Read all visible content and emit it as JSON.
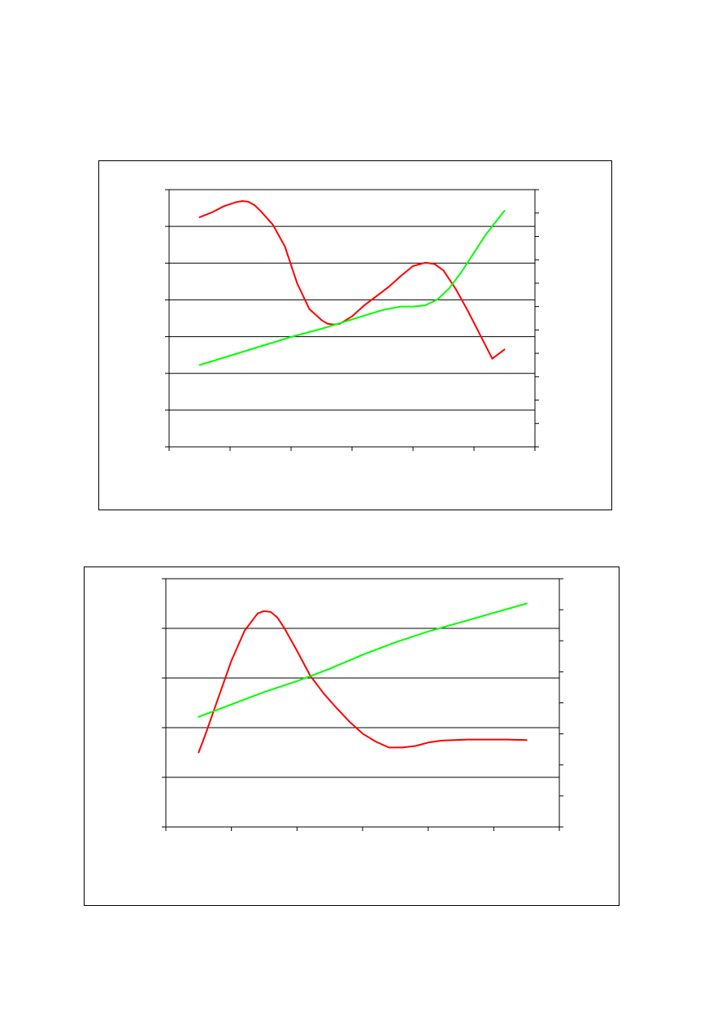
{
  "charts": {
    "colors": {
      "series_a": "#ff0000",
      "series_b": "#00ff00",
      "axis": "#000000",
      "grid": "#000000"
    }
  },
  "chart_data": [
    {
      "type": "line",
      "title": "",
      "xlabel": "",
      "ylabel": "",
      "y2label": "",
      "xlim": [
        0,
        6
      ],
      "ylim": [
        0,
        7
      ],
      "y2lim": [
        0,
        11
      ],
      "x_ticks": 6,
      "y_ticks": 7,
      "y2_ticks": 11,
      "grid": "horizontal",
      "legend": "none",
      "series": [
        {
          "axis": "left",
          "color": "#ff0000",
          "x": [
            0.5,
            0.7,
            0.9,
            1.1,
            1.2,
            1.3,
            1.4,
            1.5,
            1.7,
            1.9,
            2.1,
            2.3,
            2.5,
            2.6,
            2.7,
            2.8,
            3.0,
            3.2,
            3.4,
            3.6,
            3.8,
            4.0,
            4.2,
            4.35,
            4.5,
            4.7,
            4.9,
            5.1,
            5.3,
            5.5
          ],
          "values": [
            6.25,
            6.38,
            6.55,
            6.66,
            6.69,
            6.67,
            6.58,
            6.42,
            6.05,
            5.45,
            4.45,
            3.75,
            3.45,
            3.35,
            3.33,
            3.35,
            3.55,
            3.85,
            4.1,
            4.35,
            4.65,
            4.92,
            5.01,
            4.98,
            4.8,
            4.3,
            3.7,
            3.05,
            2.4,
            2.65
          ]
        },
        {
          "axis": "right",
          "color": "#00ff00",
          "x": [
            0.5,
            1.0,
            1.5,
            2.0,
            2.5,
            3.0,
            3.5,
            3.8,
            4.0,
            4.2,
            4.4,
            4.6,
            4.8,
            5.0,
            5.2,
            5.5
          ],
          "values": [
            3.5,
            3.9,
            4.3,
            4.7,
            5.05,
            5.45,
            5.85,
            6.0,
            6.0,
            6.05,
            6.3,
            6.8,
            7.5,
            8.3,
            9.1,
            10.1
          ]
        }
      ]
    },
    {
      "type": "line",
      "title": "",
      "xlabel": "",
      "ylabel": "",
      "y2label": "",
      "xlim": [
        0,
        6
      ],
      "ylim": [
        0,
        5
      ],
      "y2lim": [
        0,
        8
      ],
      "x_ticks": 6,
      "y_ticks": 5,
      "y2_ticks": 8,
      "grid": "horizontal",
      "legend": "none",
      "series": [
        {
          "axis": "left",
          "color": "#ff0000",
          "x": [
            0.5,
            0.6,
            0.8,
            1.0,
            1.2,
            1.4,
            1.5,
            1.6,
            1.7,
            1.8,
            2.0,
            2.2,
            2.4,
            2.6,
            2.8,
            3.0,
            3.2,
            3.4,
            3.6,
            3.8,
            4.0,
            4.2,
            4.4,
            4.6,
            4.8,
            5.0,
            5.2,
            5.5
          ],
          "values": [
            1.5,
            1.85,
            2.6,
            3.35,
            3.95,
            4.3,
            4.35,
            4.33,
            4.22,
            4.02,
            3.55,
            3.05,
            2.7,
            2.4,
            2.12,
            1.88,
            1.72,
            1.6,
            1.6,
            1.63,
            1.7,
            1.74,
            1.75,
            1.76,
            1.76,
            1.76,
            1.76,
            1.75
          ]
        },
        {
          "axis": "right",
          "color": "#00ff00",
          "x": [
            0.5,
            1.0,
            1.5,
            2.0,
            2.5,
            3.0,
            3.5,
            4.0,
            4.5,
            5.0,
            5.5
          ],
          "values": [
            3.55,
            3.95,
            4.35,
            4.7,
            5.1,
            5.55,
            5.95,
            6.3,
            6.6,
            6.9,
            7.2
          ]
        }
      ]
    }
  ]
}
